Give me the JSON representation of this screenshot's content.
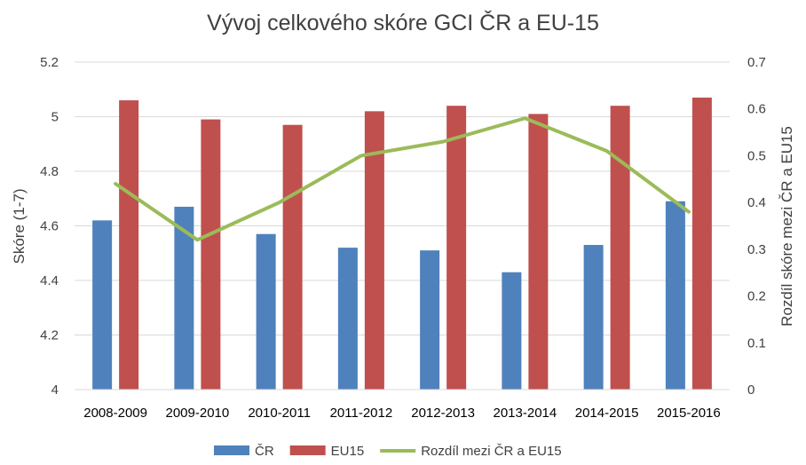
{
  "chart_data": {
    "type": "bar",
    "title": "Vývoj celkového skóre GCI ČR a EU-15",
    "ylabel": "Skóre (1-7)",
    "y2label": "Rozdíl skóre mezi ČR a EU15",
    "ylim": [
      4,
      5.2
    ],
    "y2lim": [
      0,
      0.7
    ],
    "yticks": [
      "4",
      "4.2",
      "4.4",
      "4.6",
      "4.8",
      "5",
      "5.2"
    ],
    "y2ticks": [
      "0",
      "0.1",
      "0.2",
      "0.3",
      "0.4",
      "0.5",
      "0.6",
      "0.7"
    ],
    "grid": true,
    "legend_position": "bottom",
    "categories": [
      "2008-2009",
      "2009-2010",
      "2010-2011",
      "2011-2012",
      "2012-2013",
      "2013-2014",
      "2014-2015",
      "2015-2016"
    ],
    "series": [
      {
        "name": "ČR",
        "type": "bar",
        "axis": "left",
        "color": "#4f81bd",
        "values": [
          4.62,
          4.67,
          4.57,
          4.52,
          4.51,
          4.43,
          4.53,
          4.69
        ]
      },
      {
        "name": "EU15",
        "type": "bar",
        "axis": "left",
        "color": "#c0504d",
        "values": [
          5.06,
          4.99,
          4.97,
          5.02,
          5.04,
          5.01,
          5.04,
          5.07
        ]
      },
      {
        "name": "Rozdíl mezi ČR a EU15",
        "type": "line",
        "axis": "right",
        "color": "#9bbb59",
        "values": [
          0.44,
          0.32,
          0.4,
          0.5,
          0.53,
          0.58,
          0.51,
          0.38
        ]
      }
    ]
  }
}
